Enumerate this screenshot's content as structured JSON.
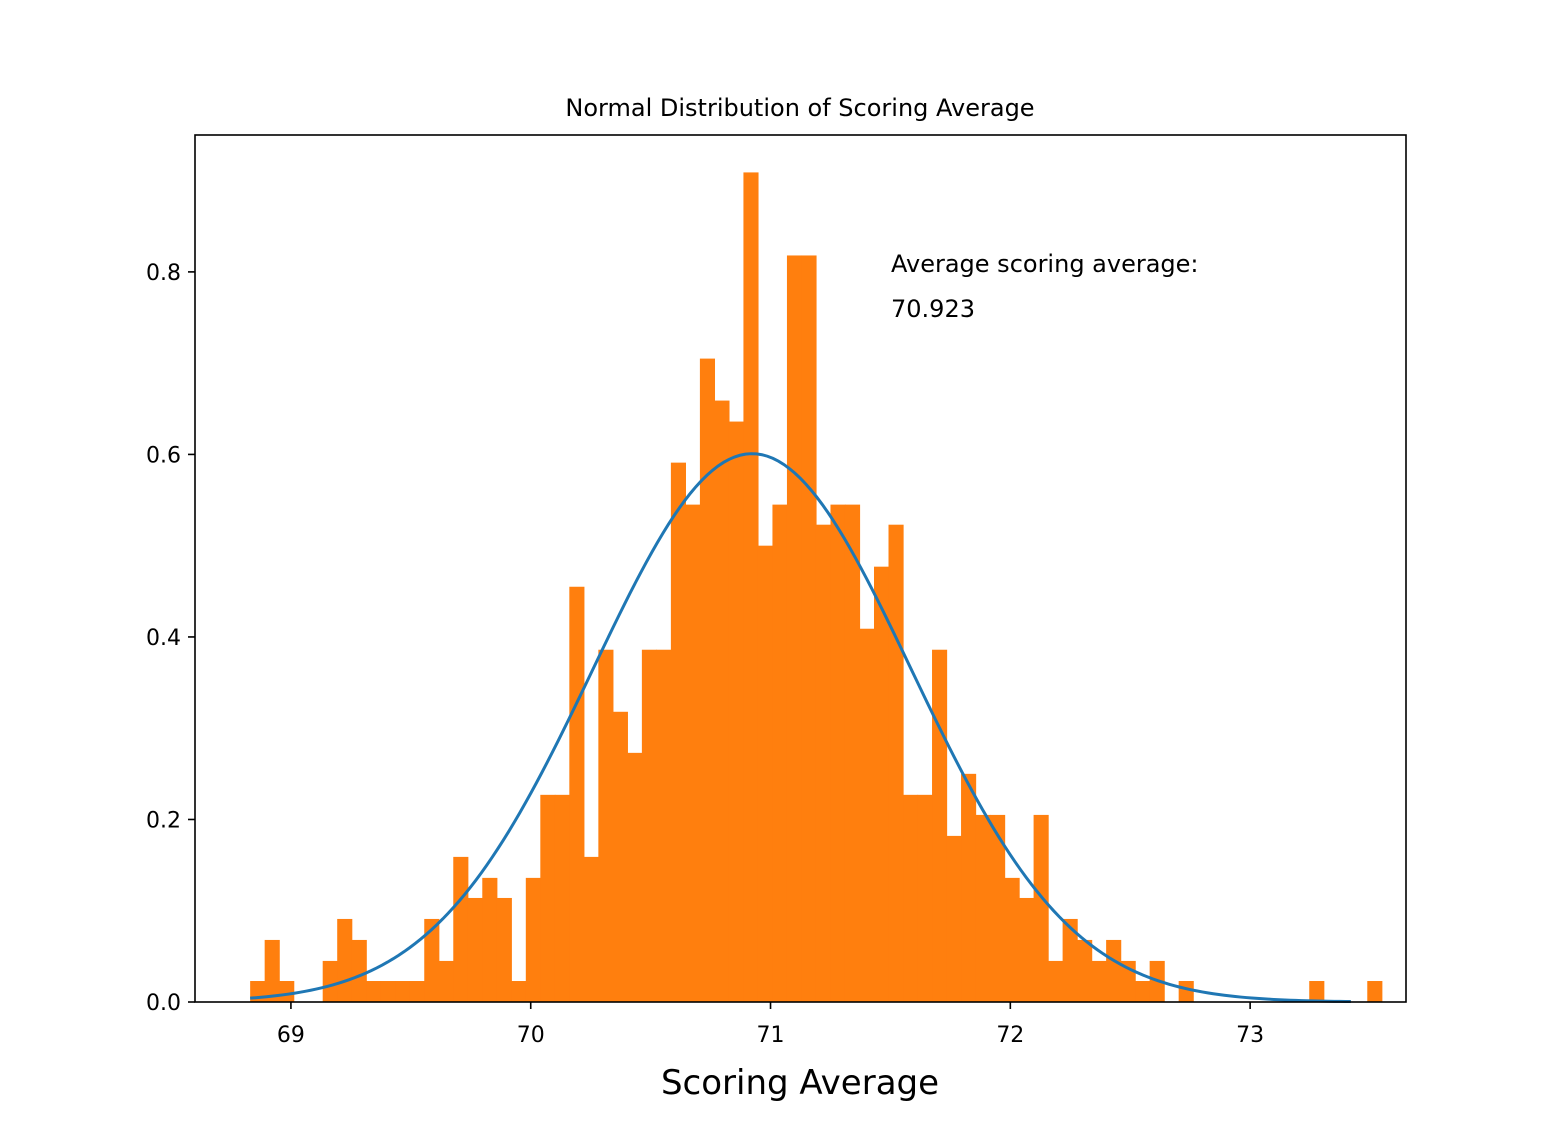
{
  "chart_data": {
    "type": "bar",
    "title": "Normal Distribution of Scoring Average",
    "xlabel": "Scoring Average",
    "ylabel": "",
    "xlim": [
      68.6,
      73.65
    ],
    "ylim": [
      0,
      0.95
    ],
    "x_ticks": [
      69,
      70,
      71,
      72,
      73
    ],
    "x_tick_labels": [
      "69",
      "70",
      "71",
      "72",
      "73"
    ],
    "y_ticks": [
      0.0,
      0.2,
      0.4,
      0.6,
      0.8
    ],
    "y_tick_labels": [
      "0.0",
      "0.2",
      "0.4",
      "0.6",
      "0.8"
    ],
    "grid": false,
    "annotation": [
      "Average scoring average:",
      "70.923"
    ],
    "histogram": {
      "color": "#ff7f0e",
      "bin_start": 68.83,
      "bin_width": 0.0605,
      "values": [
        0.023,
        0.068,
        0.023,
        0,
        0,
        0.045,
        0.091,
        0.068,
        0.023,
        0.023,
        0.023,
        0.023,
        0.091,
        0.045,
        0.159,
        0.114,
        0.136,
        0.114,
        0.023,
        0.136,
        0.227,
        0.227,
        0.455,
        0.159,
        0.386,
        0.318,
        0.273,
        0.386,
        0.386,
        0.591,
        0.545,
        0.705,
        0.659,
        0.636,
        0.909,
        0.5,
        0.545,
        0.818,
        0.818,
        0.523,
        0.545,
        0.545,
        0.409,
        0.477,
        0.523,
        0.227,
        0.227,
        0.386,
        0.182,
        0.25,
        0.205,
        0.205,
        0.136,
        0.114,
        0.205,
        0.045,
        0.091,
        0.068,
        0.045,
        0.068,
        0.045,
        0.023,
        0.045,
        0,
        0.023,
        0,
        0,
        0,
        0,
        0,
        0,
        0,
        0,
        0.023,
        0,
        0,
        0,
        0.023
      ]
    },
    "curve": {
      "type": "line",
      "color": "#1f77b4",
      "mean": 70.923,
      "std": 0.664,
      "x_range": [
        68.83,
        73.42
      ]
    }
  }
}
